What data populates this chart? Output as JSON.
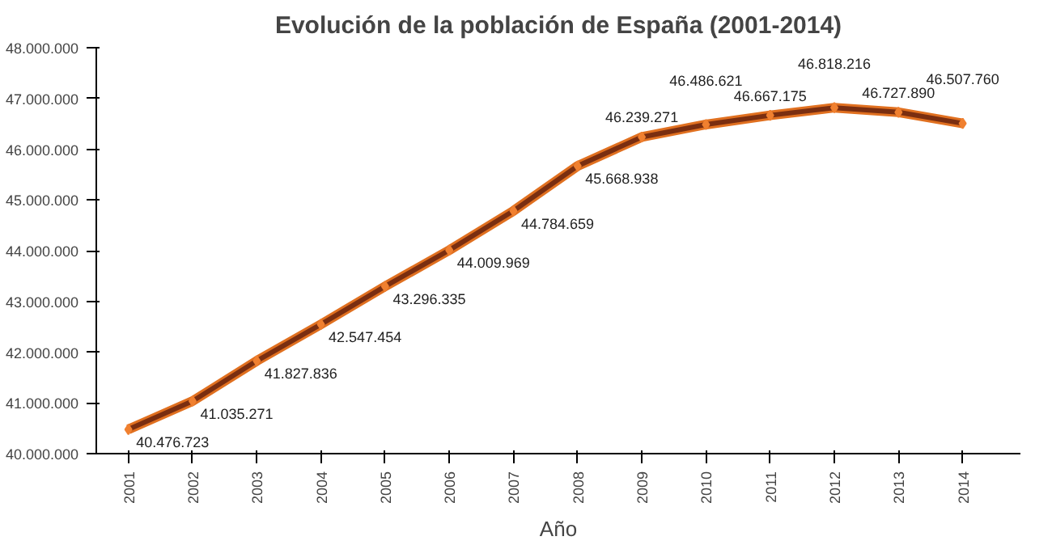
{
  "chart_data": {
    "type": "line",
    "title": "Evolución de la población de España (2001-2014)",
    "xlabel": "Año",
    "categories": [
      "2001",
      "2002",
      "2003",
      "2004",
      "2005",
      "2006",
      "2007",
      "2008",
      "2009",
      "2010",
      "2011",
      "2012",
      "2013",
      "2014"
    ],
    "series": [
      {
        "color": "#7a2e10",
        "values": [
          40476723,
          41035271,
          41827836,
          42547454,
          43296335,
          44009969,
          44784659,
          45668938,
          46239271,
          46486621,
          46667175,
          46818216,
          46727890,
          46507760
        ],
        "value_labels": [
          "40.476.723",
          "41.035.271",
          "41.827.836",
          "42.547.454",
          "43.296.335",
          "44.009.969",
          "44.784.659",
          "45.668.938",
          "46.239.271",
          "46.486.621",
          "46.667.175",
          "46.818.216",
          "46.727.890",
          "46.507.760"
        ]
      }
    ],
    "ylim": [
      40000000,
      48000000
    ],
    "yticks": [
      {
        "value": 40000000,
        "label": "40.000.000"
      },
      {
        "value": 41000000,
        "label": "41.000.000"
      },
      {
        "value": 42000000,
        "label": "42.000.000"
      },
      {
        "value": 43000000,
        "label": "43.000.000"
      },
      {
        "value": 44000000,
        "label": "44.000.000"
      },
      {
        "value": 45000000,
        "label": "45.000.000"
      },
      {
        "value": 46000000,
        "label": "46.000.000"
      },
      {
        "value": 47000000,
        "label": "47.000.000"
      },
      {
        "value": 48000000,
        "label": "48.000.000"
      }
    ],
    "grid": false,
    "marker": "diamond",
    "line_style": "solid"
  }
}
